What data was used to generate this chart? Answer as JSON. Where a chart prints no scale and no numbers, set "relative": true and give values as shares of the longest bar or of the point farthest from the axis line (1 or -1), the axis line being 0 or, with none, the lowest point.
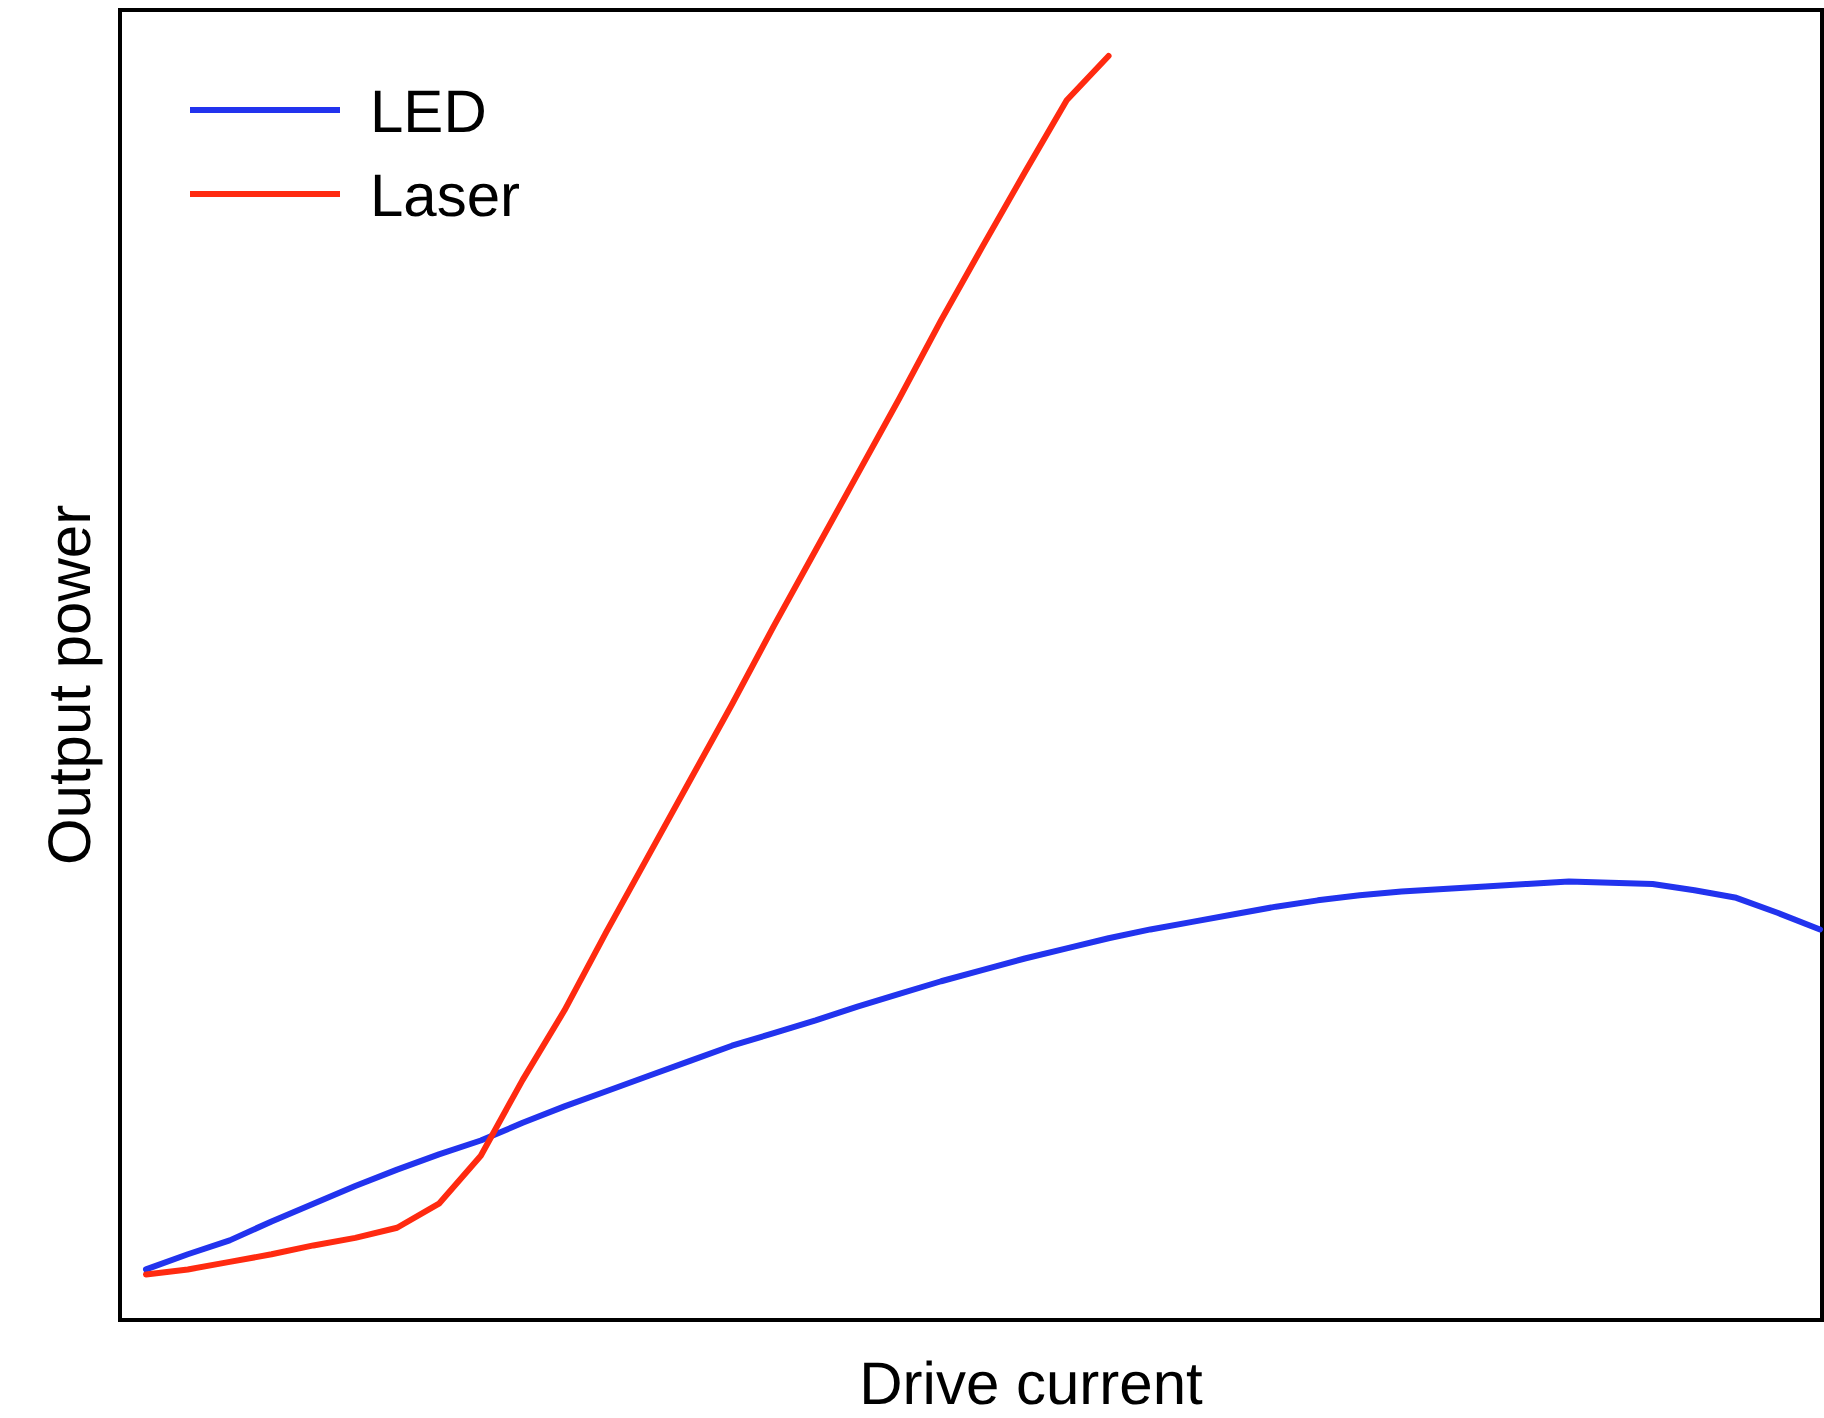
{
  "chart_data": {
    "type": "line",
    "relative": true,
    "xlabel": "Drive current",
    "ylabel": "Output power",
    "legend": "top left",
    "marker": "none",
    "line_style": "solid",
    "categories": [
      null,
      null,
      null,
      null,
      null,
      null,
      null,
      null,
      null,
      null,
      null,
      null,
      null,
      null,
      null,
      null,
      null,
      null,
      null,
      null,
      null,
      null,
      null,
      null,
      null,
      null,
      null,
      null,
      null,
      null,
      null,
      null,
      null,
      null,
      null,
      null,
      null,
      null,
      null,
      null,
      null
    ],
    "series": [
      {
        "name": "LED",
        "color": "#2233ee",
        "values": [
          0.04,
          0.052,
          0.063,
          0.078,
          0.092,
          0.106,
          0.119,
          0.131,
          0.142,
          0.156,
          0.169,
          0.181,
          0.193,
          0.205,
          0.217,
          0.227,
          0.237,
          0.248,
          0.258,
          0.268,
          0.277,
          0.286,
          0.294,
          0.302,
          0.309,
          0.315,
          0.321,
          0.327,
          0.332,
          0.336,
          0.339,
          0.341,
          0.343,
          0.345,
          0.347,
          0.346,
          0.345,
          0.34,
          0.334,
          0.322,
          0.309
        ]
      },
      {
        "name": "Laser",
        "color": "#ff2a10",
        "values": [
          0.036,
          0.04,
          0.046,
          0.052,
          0.059,
          0.065,
          0.073,
          0.092,
          0.13,
          0.19,
          0.245,
          0.307,
          0.367,
          0.427,
          0.487,
          0.549,
          0.609,
          0.669,
          0.729,
          0.791,
          0.85,
          0.908,
          0.965,
          1,
          null,
          null,
          null,
          null,
          null,
          null,
          null,
          null,
          null,
          null,
          null,
          null,
          null,
          null,
          null,
          null,
          null
        ]
      }
    ]
  }
}
